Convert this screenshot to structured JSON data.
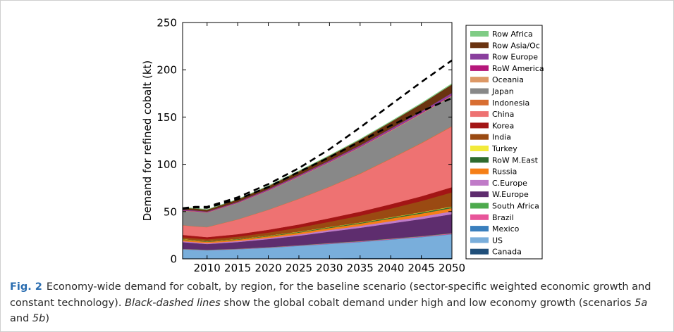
{
  "chart_data": {
    "type": "area",
    "stacked": true,
    "title": "",
    "xlabel": "",
    "ylabel": "Demand for refined cobalt (kt)",
    "xlim": [
      2006,
      2050
    ],
    "ylim": [
      0,
      250
    ],
    "x_ticks": [
      "2010",
      "2015",
      "2020",
      "2025",
      "2030",
      "2035",
      "2040",
      "2045",
      "2050"
    ],
    "y_ticks": [
      "0",
      "50",
      "100",
      "150",
      "200",
      "250"
    ],
    "legend_position": "right, outside plot",
    "x": [
      2006,
      2008,
      2010,
      2015,
      2020,
      2025,
      2030,
      2035,
      2040,
      2045,
      2050
    ],
    "series": [
      {
        "name": "Canada",
        "color": "#1f4e79",
        "values": [
          0.5,
          0.5,
          0.5,
          0.6,
          0.6,
          0.7,
          0.7,
          0.8,
          0.8,
          0.9,
          1.0
        ]
      },
      {
        "name": "US",
        "color": "#79aedb",
        "values": [
          9.5,
          9.0,
          8.5,
          9.5,
          11.0,
          13.0,
          15.0,
          17.0,
          19.5,
          22.0,
          25.0
        ]
      },
      {
        "name": "Mexico",
        "color": "#3a7fbd",
        "values": [
          0.2,
          0.2,
          0.2,
          0.2,
          0.2,
          0.2,
          0.3,
          0.3,
          0.3,
          0.3,
          0.3
        ]
      },
      {
        "name": "Brazil",
        "color": "#e8559a",
        "values": [
          0.3,
          0.3,
          0.3,
          0.3,
          0.4,
          0.4,
          0.5,
          0.5,
          0.6,
          0.6,
          0.7
        ]
      },
      {
        "name": "South Africa",
        "color": "#4daa4d",
        "values": [
          0.2,
          0.2,
          0.2,
          0.2,
          0.2,
          0.2,
          0.3,
          0.3,
          0.3,
          0.3,
          0.3
        ]
      },
      {
        "name": "W.Europe",
        "color": "#5e2d6e",
        "values": [
          7.0,
          6.5,
          6.0,
          7.0,
          8.5,
          10.0,
          12.0,
          14.0,
          16.0,
          18.0,
          20.0
        ]
      },
      {
        "name": "C.Europe",
        "color": "#c07bc8",
        "values": [
          1.0,
          1.0,
          1.0,
          1.1,
          1.3,
          1.5,
          1.8,
          2.0,
          2.3,
          2.6,
          3.0
        ]
      },
      {
        "name": "Russia",
        "color": "#f57f17",
        "values": [
          1.5,
          1.4,
          1.3,
          1.4,
          1.6,
          1.8,
          2.1,
          2.4,
          2.8,
          3.2,
          3.5
        ]
      },
      {
        "name": "RoW M.East",
        "color": "#2e6b2e",
        "values": [
          0.5,
          0.5,
          0.5,
          0.5,
          0.6,
          0.7,
          0.8,
          0.9,
          1.0,
          1.1,
          1.2
        ]
      },
      {
        "name": "Turkey",
        "color": "#f2ea3a",
        "values": [
          0.2,
          0.2,
          0.2,
          0.2,
          0.2,
          0.3,
          0.3,
          0.3,
          0.4,
          0.4,
          0.4
        ]
      },
      {
        "name": "India",
        "color": "#9a4a12",
        "values": [
          2.0,
          2.0,
          2.0,
          2.5,
          3.2,
          4.2,
          5.5,
          7.2,
          9.2,
          11.8,
          15.0
        ]
      },
      {
        "name": "Korea",
        "color": "#a31515",
        "values": [
          2.5,
          2.4,
          2.3,
          2.6,
          3.0,
          3.4,
          3.8,
          4.2,
          4.6,
          5.0,
          5.5
        ]
      },
      {
        "name": "China",
        "color": "#ee7272",
        "values": [
          10.0,
          10.0,
          10.5,
          15.5,
          21.0,
          27.0,
          33.0,
          40.0,
          48.0,
          56.0,
          64.0
        ]
      },
      {
        "name": "Indonesia",
        "color": "#d86e32",
        "values": [
          0.3,
          0.3,
          0.3,
          0.3,
          0.3,
          0.4,
          0.4,
          0.5,
          0.5,
          0.6,
          0.6
        ]
      },
      {
        "name": "Japan",
        "color": "#888888",
        "values": [
          15.0,
          15.5,
          15.0,
          17.0,
          20.0,
          23.0,
          25.5,
          27.5,
          29.0,
          30.5,
          32.0
        ]
      },
      {
        "name": "Oceania",
        "color": "#dd9866",
        "values": [
          0.3,
          0.3,
          0.3,
          0.3,
          0.3,
          0.4,
          0.4,
          0.4,
          0.5,
          0.5,
          0.5
        ]
      },
      {
        "name": "RoW America",
        "color": "#b5177a",
        "values": [
          0.3,
          0.3,
          0.3,
          0.3,
          0.4,
          0.4,
          0.4,
          0.5,
          0.5,
          0.5,
          0.6
        ]
      },
      {
        "name": "Row Europe",
        "color": "#8a3f9e",
        "values": [
          0.7,
          0.7,
          0.7,
          0.8,
          0.9,
          1.0,
          1.2,
          1.3,
          1.5,
          1.7,
          2.0
        ]
      },
      {
        "name": "Row Asia/Oc",
        "color": "#6a3310",
        "values": [
          2.0,
          2.0,
          1.9,
          2.5,
          3.2,
          4.0,
          5.0,
          6.0,
          7.0,
          8.0,
          9.0
        ]
      },
      {
        "name": "Row Africa",
        "color": "#7fcc85",
        "values": [
          0.4,
          0.4,
          0.4,
          0.4,
          0.5,
          0.6,
          0.6,
          0.7,
          0.7,
          0.8,
          0.9
        ]
      }
    ],
    "reference_lines": [
      {
        "label": "Black-dashed lines: high economy growth (scenario 5a)",
        "style": "dashed",
        "color": "#000000",
        "values": [
          53.5,
          55.0,
          55.0,
          65.0,
          79.0,
          96.0,
          116.0,
          139.0,
          163.0,
          187.0,
          210.0
        ]
      },
      {
        "label": "Black-dashed lines: low economy growth (scenario 5b)",
        "style": "dashed",
        "color": "#000000",
        "values": [
          53.0,
          54.5,
          54.0,
          63.0,
          76.0,
          92.0,
          107.5,
          124.0,
          141.0,
          156.0,
          170.0
        ]
      }
    ]
  },
  "caption": {
    "fig_label": "Fig. 2",
    "text_part1": "Economy-wide demand for cobalt, by region, for the baseline scenario (sector-specific weighted economic growth and constant technology). ",
    "italic_part": "Black-dashed lines",
    "text_part2": " show the global cobalt demand under high and low economy growth (scenarios ",
    "sc_a": "5a",
    "and_word": " and ",
    "sc_b": "5b",
    "text_end": ")"
  }
}
